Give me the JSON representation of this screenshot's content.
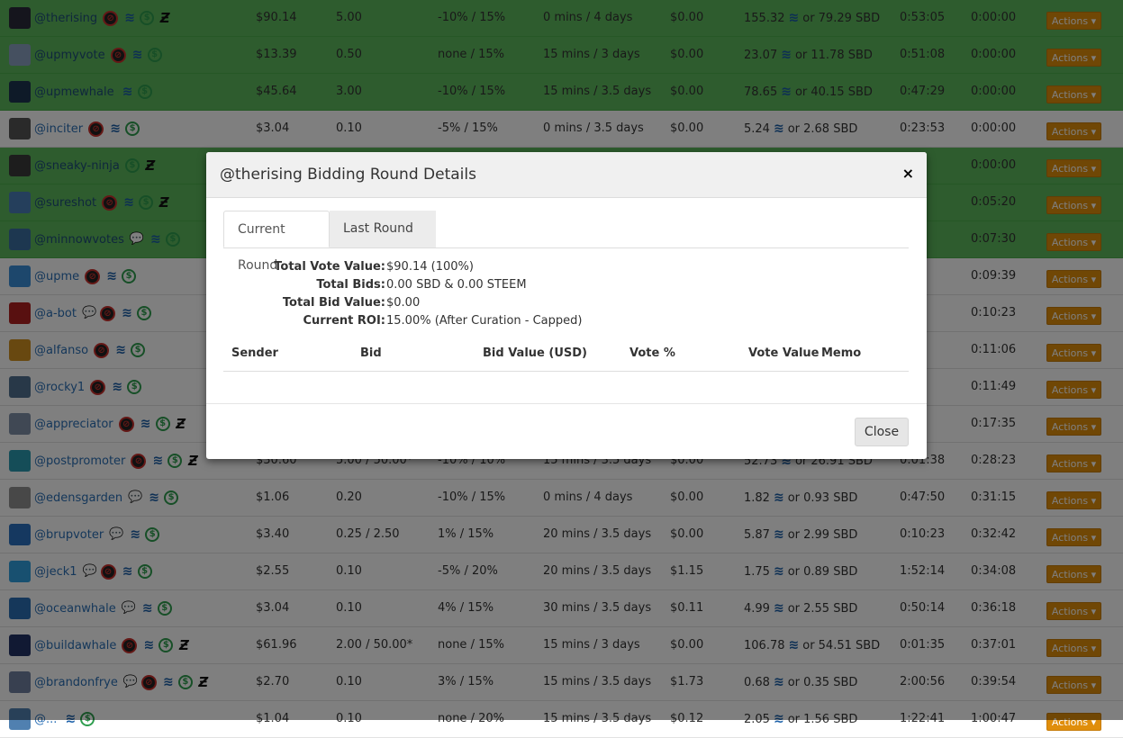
{
  "rows": [
    {
      "name": "@therising",
      "green": true,
      "icons": [
        "no",
        "steem",
        "dollar",
        "z"
      ],
      "avatar": "#2b2b3a",
      "vote_value": "$90.14",
      "min_bid": "5.00",
      "curation": "-10% / 15%",
      "age": "0 mins / 4 days",
      "total": "$0.00",
      "vote_sbd": "155.32",
      "vote_tail": "or 79.29 SBD",
      "next": "0:53:05",
      "last": "0:00:00"
    },
    {
      "name": "@upmyvote",
      "green": true,
      "icons": [
        "no",
        "steem",
        "dollar"
      ],
      "avatar": "#8aa0c0",
      "vote_value": "$13.39",
      "min_bid": "0.50",
      "curation": "none / 15%",
      "age": "15 mins / 3 days",
      "total": "$0.00",
      "vote_sbd": "23.07",
      "vote_tail": "or 11.78 SBD",
      "next": "0:51:08",
      "last": "0:00:00"
    },
    {
      "name": "@upmewhale",
      "green": true,
      "icons": [
        "steem",
        "dollar"
      ],
      "avatar": "#1c3550",
      "vote_value": "$45.64",
      "min_bid": "3.00",
      "curation": "-10% / 15%",
      "age": "15 mins / 3.5 days",
      "total": "$0.00",
      "vote_sbd": "78.65",
      "vote_tail": "or 40.15 SBD",
      "next": "0:47:29",
      "last": "0:00:00"
    },
    {
      "name": "@inciter",
      "green": false,
      "icons": [
        "no",
        "steem",
        "dollar"
      ],
      "avatar": "#555",
      "vote_value": "$3.04",
      "min_bid": "0.10",
      "curation": "-5% / 15%",
      "age": "0 mins / 3.5 days",
      "total": "$0.00",
      "vote_sbd": "5.24",
      "vote_tail": "or 2.68 SBD",
      "next": "0:23:53",
      "last": "0:00:00"
    },
    {
      "name": "@sneaky-ninja",
      "green": true,
      "icons": [
        "dollar",
        "z"
      ],
      "avatar": "#3a3a3a",
      "vote_value": "",
      "min_bid": "",
      "curation": "",
      "age": "",
      "total": "",
      "vote_sbd": "",
      "vote_tail": "",
      "next": ":23",
      "last": "0:00:00"
    },
    {
      "name": "@sureshot",
      "green": true,
      "icons": [
        "no",
        "steem",
        "dollar",
        "z"
      ],
      "avatar": "#4a7fb8",
      "vote_value": "",
      "min_bid": "",
      "curation": "",
      "age": "",
      "total": "",
      "vote_sbd": "",
      "vote_tail": "",
      "next": ":26",
      "last": "0:05:20"
    },
    {
      "name": "@minnowvotes",
      "green": true,
      "icons": [
        "chat",
        "steem",
        "dollar"
      ],
      "avatar": "#3a6fa0",
      "vote_value": "",
      "min_bid": "",
      "curation": "",
      "age": "",
      "total": "",
      "vote_sbd": "",
      "vote_tail": "",
      "next": ":05",
      "last": "0:07:30"
    },
    {
      "name": "@upme",
      "green": false,
      "icons": [
        "no",
        "steem",
        "dollar"
      ],
      "avatar": "#3b8ed8",
      "vote_value": "",
      "min_bid": "",
      "curation": "",
      "age": "",
      "total": "",
      "vote_sbd": "",
      "vote_tail": "",
      "next": ":02",
      "last": "0:09:39"
    },
    {
      "name": "@a-bot",
      "green": false,
      "icons": [
        "chat",
        "no",
        "steem",
        "dollar"
      ],
      "avatar": "#b02020",
      "vote_value": "",
      "min_bid": "",
      "curation": "",
      "age": "",
      "total": "",
      "vote_sbd": "",
      "vote_tail": "",
      "next": ":50",
      "last": "0:10:23"
    },
    {
      "name": "@alfanso",
      "green": false,
      "icons": [
        "no",
        "steem",
        "dollar"
      ],
      "avatar": "#d09020",
      "vote_value": "",
      "min_bid": "",
      "curation": "",
      "age": "",
      "total": "",
      "vote_sbd": "",
      "vote_tail": "",
      "next": ":35",
      "last": "0:11:06"
    },
    {
      "name": "@rocky1",
      "green": false,
      "icons": [
        "no",
        "steem",
        "dollar"
      ],
      "avatar": "#507090",
      "vote_value": "",
      "min_bid": "",
      "curation": "",
      "age": "",
      "total": "",
      "vote_sbd": "",
      "vote_tail": "",
      "next": ":38",
      "last": "0:11:49"
    },
    {
      "name": "@appreciator",
      "green": false,
      "icons": [
        "no",
        "steem",
        "dollar",
        "z"
      ],
      "avatar": "#8090a8",
      "vote_value": "",
      "min_bid": "",
      "curation": "",
      "age": "",
      "total": "",
      "vote_sbd": "",
      "vote_tail": "",
      "next": ":56",
      "last": "0:17:35"
    },
    {
      "name": "@postpromoter",
      "green": false,
      "icons": [
        "no",
        "steem",
        "dollar",
        "z"
      ],
      "avatar": "#2a9ab0",
      "vote_value": "$30.60",
      "min_bid": "5.00 / 50.00*",
      "curation": "-10% / 10%",
      "age": "15 mins / 3.5 days",
      "total": "$0.00",
      "vote_sbd": "52.73",
      "vote_tail": "or 26.91 SBD",
      "next": "0:01:38",
      "last": "0:28:23"
    },
    {
      "name": "@edensgarden",
      "green": false,
      "icons": [
        "chat",
        "steem",
        "dollar"
      ],
      "avatar": "#909090",
      "vote_value": "$1.06",
      "min_bid": "0.20",
      "curation": "-10% / 15%",
      "age": "0 mins / 4 days",
      "total": "$0.00",
      "vote_sbd": "1.82",
      "vote_tail": "or 0.93 SBD",
      "next": "0:47:50",
      "last": "0:31:15"
    },
    {
      "name": "@brupvoter",
      "green": false,
      "icons": [
        "chat",
        "steem",
        "dollar"
      ],
      "avatar": "#2a70c0",
      "vote_value": "$3.40",
      "min_bid": "0.25 / 2.50",
      "curation": "1% / 15%",
      "age": "20 mins / 3.5 days",
      "total": "$0.00",
      "vote_sbd": "5.87",
      "vote_tail": "or 2.99 SBD",
      "next": "0:10:23",
      "last": "0:32:42"
    },
    {
      "name": "@jeck1",
      "green": false,
      "icons": [
        "chat",
        "no",
        "steem",
        "dollar"
      ],
      "avatar": "#30a0e0",
      "vote_value": "$2.55",
      "min_bid": "0.10",
      "curation": "-5% / 20%",
      "age": "20 mins / 3.5 days",
      "total": "$1.15",
      "vote_sbd": "1.75",
      "vote_tail": "or 0.89 SBD",
      "next": "1:52:14",
      "last": "0:34:08"
    },
    {
      "name": "@oceanwhale",
      "green": false,
      "icons": [
        "chat",
        "steem",
        "dollar"
      ],
      "avatar": "#2a6fb5",
      "vote_value": "$3.04",
      "min_bid": "0.10",
      "curation": "4% / 15%",
      "age": "30 mins / 3.5 days",
      "total": "$0.11",
      "vote_sbd": "4.99",
      "vote_tail": "or 2.55 SBD",
      "next": "0:50:14",
      "last": "0:36:18"
    },
    {
      "name": "@buildawhale",
      "green": false,
      "icons": [
        "no",
        "steem",
        "dollar",
        "z"
      ],
      "avatar": "#223366",
      "vote_value": "$61.96",
      "min_bid": "2.00 / 50.00*",
      "curation": "none / 15%",
      "age": "15 mins / 3 days",
      "total": "$0.00",
      "vote_sbd": "106.78",
      "vote_tail": "or 54.51 SBD",
      "next": "0:01:35",
      "last": "0:37:01"
    },
    {
      "name": "@brandonfrye",
      "green": false,
      "icons": [
        "chat",
        "no",
        "steem",
        "dollar",
        "z"
      ],
      "avatar": "#7080a0",
      "vote_value": "$2.70",
      "min_bid": "0.10",
      "curation": "3% / 15%",
      "age": "15 mins / 3.5 days",
      "total": "$1.73",
      "vote_sbd": "0.68",
      "vote_tail": "or 0.35 SBD",
      "next": "2:00:56",
      "last": "0:39:54"
    },
    {
      "name": "@...",
      "green": false,
      "icons": [
        "steem",
        "dollar"
      ],
      "avatar": "#5080b0",
      "vote_value": "$1.04",
      "min_bid": "0.10",
      "curation": "none / 20%",
      "age": "15 mins / 3.5 days",
      "total": "$0.12",
      "vote_sbd": "2.05",
      "vote_tail": "or 1.56 SBD",
      "next": "1:22:41",
      "last": "1:00:47"
    }
  ],
  "actions_label": "Actions",
  "modal": {
    "title": "@therising Bidding Round Details",
    "close_x": "×",
    "tabs": [
      "Current Round",
      "Last Round"
    ],
    "info": [
      {
        "label": "Total Vote Value:",
        "value": "$90.14 (100%)"
      },
      {
        "label": "Total Bids:",
        "value": "0.00 SBD & 0.00 STEEM"
      },
      {
        "label": "Total Bid Value:",
        "value": "$0.00"
      },
      {
        "label": "Current ROI:",
        "value": "15.00% (After Curation - Capped)"
      }
    ],
    "bid_headers": [
      "Sender",
      "Bid",
      "Bid Value (USD)",
      "Vote %",
      "Vote Value",
      "Memo"
    ],
    "close_label": "Close"
  },
  "colors": {
    "green_row": "#5cb85c",
    "actions_btn": "#e08e0b"
  }
}
